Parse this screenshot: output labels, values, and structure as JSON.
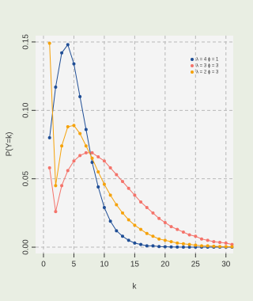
{
  "chart_data": {
    "type": "line",
    "x_label": "k",
    "y_label": "P(Y=k)",
    "x": [
      1,
      2,
      3,
      4,
      5,
      6,
      7,
      8,
      9,
      10,
      11,
      12,
      13,
      14,
      15,
      16,
      17,
      18,
      19,
      20,
      21,
      22,
      23,
      24,
      25,
      26,
      27,
      28,
      29,
      30,
      31
    ],
    "series": [
      {
        "name": "λ = 4 ϕ = 1",
        "color": "#1f4e96",
        "values": [
          0.08,
          0.117,
          0.142,
          0.148,
          0.134,
          0.11,
          0.086,
          0.062,
          0.044,
          0.029,
          0.019,
          0.012,
          0.008,
          0.005,
          0.003,
          0.002,
          0.001,
          0.001,
          0.0005,
          0.0003,
          0.0002,
          0.0001,
          0,
          0,
          0,
          0,
          0,
          0,
          0,
          0,
          0
        ]
      },
      {
        "name": "λ = 3 ϕ = 3",
        "color": "#f4736a",
        "values": [
          0.058,
          0.026,
          0.045,
          0.056,
          0.063,
          0.067,
          0.069,
          0.069,
          0.066,
          0.063,
          0.058,
          0.053,
          0.048,
          0.043,
          0.038,
          0.033,
          0.029,
          0.025,
          0.021,
          0.018,
          0.015,
          0.013,
          0.011,
          0.009,
          0.008,
          0.006,
          0.005,
          0.004,
          0.0035,
          0.003,
          0.002
        ]
      },
      {
        "name": "λ = 2 ϕ = 3",
        "color": "#f5a20a",
        "values": [
          0.149,
          0.045,
          0.074,
          0.088,
          0.089,
          0.083,
          0.074,
          0.065,
          0.055,
          0.046,
          0.038,
          0.031,
          0.025,
          0.02,
          0.016,
          0.013,
          0.01,
          0.008,
          0.006,
          0.005,
          0.004,
          0.003,
          0.0025,
          0.002,
          0.0015,
          0.001,
          0.001,
          0.0007,
          0.0005,
          0.0004,
          0.0003
        ]
      }
    ],
    "xlim": [
      -1.3,
      31.2
    ],
    "xticks": [
      0,
      5,
      10,
      15,
      20,
      25,
      30
    ],
    "ylim": [
      -0.0046,
      0.1546
    ],
    "yticks": [
      {
        "value": 0,
        "label": "0.00"
      },
      {
        "value": 0.05,
        "label": "0.05"
      },
      {
        "value": 0.1,
        "label": "0.10"
      },
      {
        "value": 0.15,
        "label": "0.15"
      }
    ],
    "grid": true,
    "legend": "top-right"
  }
}
